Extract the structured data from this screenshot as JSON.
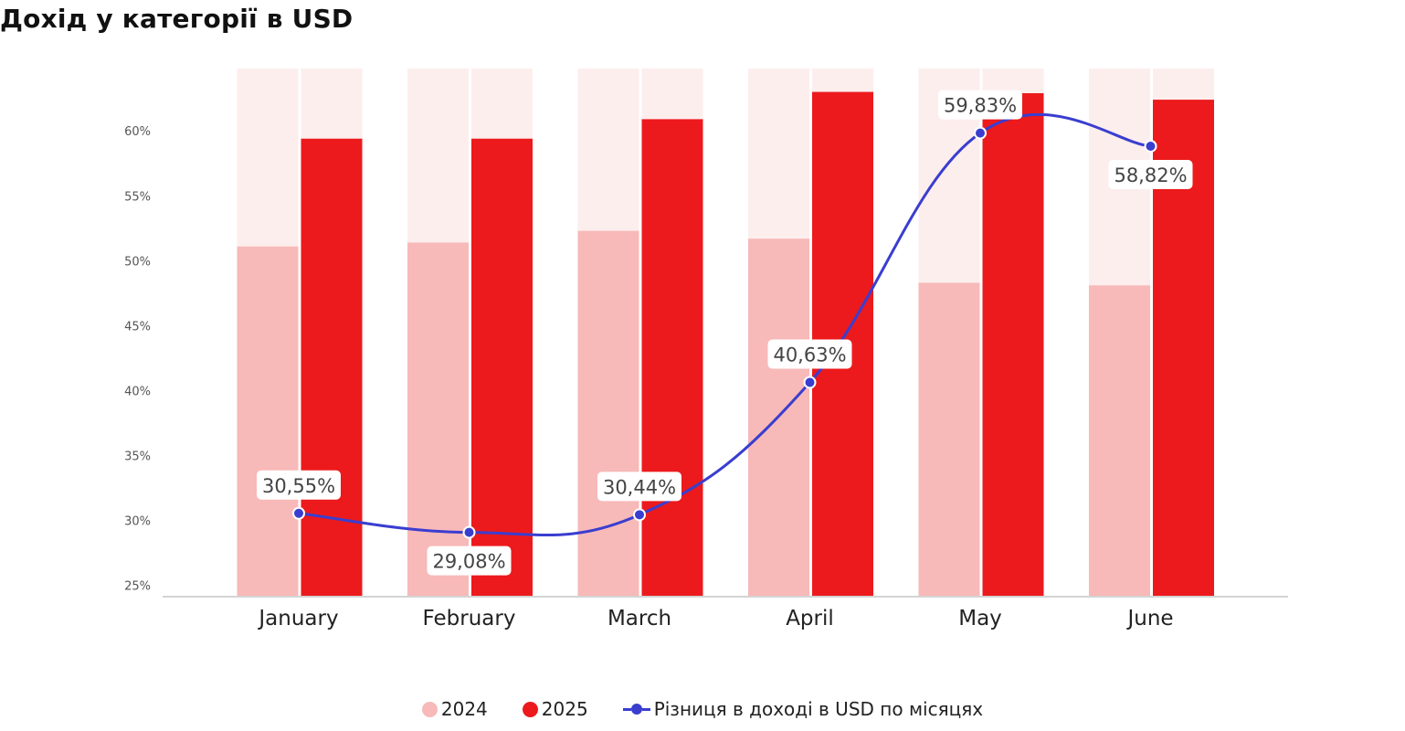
{
  "title": "Дохід у категорії в USD",
  "chart_data": {
    "type": "bar",
    "title": "Дохід у категорії в USD",
    "xlabel": "",
    "ylabel": "",
    "ylim": [
      24.2,
      64.8
    ],
    "yticks": [
      25,
      30,
      35,
      40,
      45,
      50,
      55,
      60
    ],
    "ytick_labels": [
      "25%",
      "30%",
      "35%",
      "40%",
      "45%",
      "50%",
      "55%",
      "60%"
    ],
    "grid": false,
    "categories": [
      "January",
      "February",
      "March",
      "April",
      "May",
      "June"
    ],
    "background_max": 64.8,
    "series": [
      {
        "name": "2024",
        "type": "bar",
        "color": "#f8b9b9",
        "values": [
          51.1,
          51.4,
          52.3,
          51.7,
          48.3,
          48.1
        ]
      },
      {
        "name": "2025",
        "type": "bar",
        "color": "#ec1a1c",
        "values": [
          59.4,
          59.4,
          60.9,
          63.0,
          62.9,
          62.4
        ]
      },
      {
        "name": "Різниця в доході в USD по місяцях",
        "type": "line",
        "color": "#3a3ecf",
        "values": [
          30.55,
          29.08,
          30.44,
          40.63,
          59.83,
          58.82
        ],
        "labels": [
          "30,55%",
          "29,08%",
          "30,44%",
          "40,63%",
          "59,83%",
          "58,82%"
        ],
        "label_position": [
          "above",
          "below",
          "above",
          "above",
          "above",
          "below"
        ]
      }
    ],
    "legend": {
      "position": "bottom",
      "entries": [
        "2024",
        "2025",
        "Різниця в доході в USD по місяцях"
      ]
    }
  }
}
